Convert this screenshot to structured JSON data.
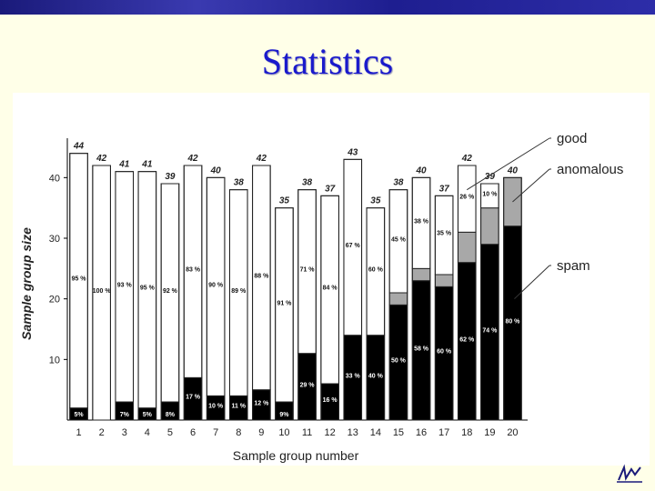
{
  "slide": {
    "title": "Statistics"
  },
  "chart_data": {
    "type": "bar",
    "stacked": true,
    "xlabel": "Sample group number",
    "ylabel": "Sample group size",
    "ylim": [
      0,
      45
    ],
    "yticks": [
      10,
      20,
      30,
      40
    ],
    "categories": [
      "1",
      "2",
      "3",
      "4",
      "5",
      "6",
      "7",
      "8",
      "9",
      "10",
      "11",
      "12",
      "13",
      "14",
      "15",
      "16",
      "17",
      "18",
      "19",
      "20"
    ],
    "totals": [
      44,
      42,
      41,
      41,
      39,
      42,
      40,
      38,
      42,
      35,
      38,
      37,
      43,
      35,
      38,
      40,
      37,
      42,
      39,
      40
    ],
    "series": [
      {
        "name": "spam",
        "color": "#000000",
        "values": [
          2,
          0,
          3,
          2,
          3,
          7,
          4,
          4,
          5,
          3,
          11,
          6,
          14,
          14,
          19,
          23,
          22,
          26,
          29,
          32
        ],
        "labels": [
          "5%",
          "",
          "7%",
          "5%",
          "8%",
          "17 %",
          "10 %",
          "11 %",
          "12 %",
          "9%",
          "29 %",
          "16 %",
          "33 %",
          "40 %",
          "50 %",
          "58 %",
          "60 %",
          "62 %",
          "74 %",
          "80 %"
        ]
      },
      {
        "name": "anomalous",
        "color": "#a8a8a8",
        "values": [
          0,
          0,
          0,
          0,
          0,
          0,
          0,
          0,
          0,
          0,
          0,
          0,
          0,
          0,
          2,
          2,
          2,
          5,
          6,
          8
        ],
        "labels": [
          "",
          "",
          "",
          "",
          "",
          "",
          "",
          "",
          "",
          "",
          "",
          "",
          "",
          "",
          "",
          "",
          "",
          "",
          "",
          ""
        ]
      },
      {
        "name": "good",
        "color": "#ffffff",
        "values": [
          42,
          42,
          38,
          39,
          36,
          35,
          36,
          34,
          37,
          32,
          27,
          31,
          29,
          21,
          17,
          15,
          13,
          11,
          4,
          0
        ],
        "labels": [
          "95 %",
          "100 %",
          "93 %",
          "95 %",
          "92 %",
          "83 %",
          "90 %",
          "89 %",
          "88 %",
          "91 %",
          "71 %",
          "84 %",
          "67 %",
          "60 %",
          "45 %",
          "38 %",
          "35 %",
          "26 %",
          "10 %",
          ""
        ]
      }
    ],
    "legend": [
      "good",
      "anomalous",
      "spam"
    ],
    "legend_placement": "right"
  }
}
